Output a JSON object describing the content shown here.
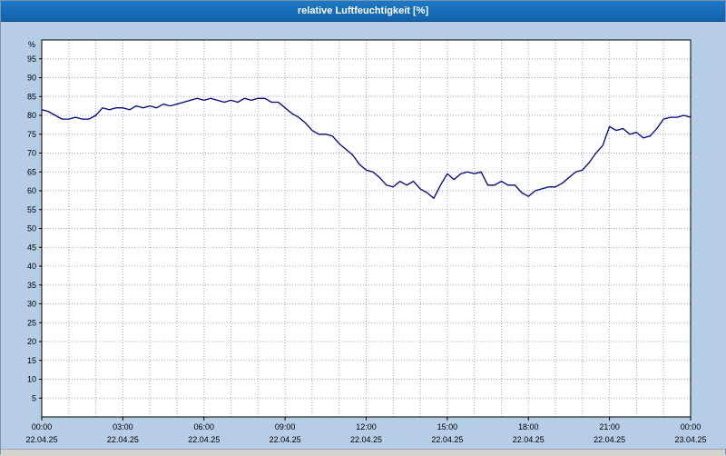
{
  "window": {
    "title": "relative Luftfeuchtigkeit [%]"
  },
  "colors": {
    "titlebar": "#1569b5",
    "panel_bg": "#b6cde6",
    "plot_bg": "#ffffff",
    "grid": "#8fa8c4",
    "axis": "#000000",
    "line": "#000080"
  },
  "chart_data": {
    "type": "line",
    "title": "relative Luftfeuchtigkeit [%]",
    "xlabel": "",
    "ylabel": "%",
    "ylim": [
      0,
      100
    ],
    "xlim": [
      0,
      24
    ],
    "grid": "dotted, horizontal every 5%, vertical every hour",
    "legend_position": "none",
    "yticks": [
      5,
      10,
      15,
      20,
      25,
      30,
      35,
      40,
      45,
      50,
      55,
      60,
      65,
      70,
      75,
      80,
      85,
      90,
      95
    ],
    "x_minor_step": 1,
    "x_ticks": [
      {
        "t": 0,
        "time": "00:00",
        "date": "22.04.25"
      },
      {
        "t": 3,
        "time": "03:00",
        "date": "22.04.25"
      },
      {
        "t": 6,
        "time": "06:00",
        "date": "22.04.25"
      },
      {
        "t": 9,
        "time": "09:00",
        "date": "22.04.25"
      },
      {
        "t": 12,
        "time": "12:00",
        "date": "22.04.25"
      },
      {
        "t": 15,
        "time": "15:00",
        "date": "22.04.25"
      },
      {
        "t": 18,
        "time": "18:00",
        "date": "22.04.25"
      },
      {
        "t": 21,
        "time": "21:00",
        "date": "22.04.25"
      },
      {
        "t": 24,
        "time": "00:00",
        "date": "23.04.25"
      }
    ],
    "series": [
      {
        "name": "relative Luftfeuchtigkeit",
        "color": "#000080",
        "points": [
          [
            0,
            81.5
          ],
          [
            0.25,
            81
          ],
          [
            0.5,
            80
          ],
          [
            0.75,
            79
          ],
          [
            1,
            79
          ],
          [
            1.25,
            79.5
          ],
          [
            1.5,
            79
          ],
          [
            1.75,
            79
          ],
          [
            2,
            80
          ],
          [
            2.25,
            82
          ],
          [
            2.5,
            81.5
          ],
          [
            2.75,
            82
          ],
          [
            3,
            82
          ],
          [
            3.25,
            81.5
          ],
          [
            3.5,
            82.5
          ],
          [
            3.75,
            82
          ],
          [
            4,
            82.5
          ],
          [
            4.25,
            82
          ],
          [
            4.5,
            83
          ],
          [
            4.75,
            82.5
          ],
          [
            5,
            83
          ],
          [
            5.25,
            83.5
          ],
          [
            5.5,
            84
          ],
          [
            5.75,
            84.5
          ],
          [
            6,
            84
          ],
          [
            6.25,
            84.5
          ],
          [
            6.5,
            84
          ],
          [
            6.75,
            83.5
          ],
          [
            7,
            84
          ],
          [
            7.25,
            83.5
          ],
          [
            7.5,
            84.5
          ],
          [
            7.75,
            84
          ],
          [
            8,
            84.5
          ],
          [
            8.25,
            84.5
          ],
          [
            8.5,
            83.5
          ],
          [
            8.75,
            83.5
          ],
          [
            9,
            82
          ],
          [
            9.25,
            80.5
          ],
          [
            9.5,
            79.5
          ],
          [
            9.75,
            78
          ],
          [
            10,
            76
          ],
          [
            10.25,
            75
          ],
          [
            10.5,
            75
          ],
          [
            10.75,
            74.5
          ],
          [
            11,
            72.5
          ],
          [
            11.25,
            71
          ],
          [
            11.5,
            69.5
          ],
          [
            11.75,
            67
          ],
          [
            12,
            65.5
          ],
          [
            12.25,
            65
          ],
          [
            12.5,
            63.5
          ],
          [
            12.75,
            61.5
          ],
          [
            13,
            61
          ],
          [
            13.25,
            62.5
          ],
          [
            13.5,
            61.5
          ],
          [
            13.75,
            62.5
          ],
          [
            14,
            60.5
          ],
          [
            14.25,
            59.5
          ],
          [
            14.5,
            58
          ],
          [
            14.75,
            61.5
          ],
          [
            15,
            64.5
          ],
          [
            15.25,
            63
          ],
          [
            15.5,
            64.5
          ],
          [
            15.75,
            65
          ],
          [
            16,
            64.5
          ],
          [
            16.25,
            65
          ],
          [
            16.5,
            61.5
          ],
          [
            16.75,
            61.5
          ],
          [
            17,
            62.5
          ],
          [
            17.25,
            61.5
          ],
          [
            17.5,
            61.5
          ],
          [
            17.75,
            59.5
          ],
          [
            18,
            58.5
          ],
          [
            18.25,
            60
          ],
          [
            18.5,
            60.5
          ],
          [
            18.75,
            61
          ],
          [
            19,
            61
          ],
          [
            19.25,
            62
          ],
          [
            19.5,
            63.5
          ],
          [
            19.75,
            65
          ],
          [
            20,
            65.5
          ],
          [
            20.25,
            67.5
          ],
          [
            20.5,
            70
          ],
          [
            20.75,
            72
          ],
          [
            21,
            77
          ],
          [
            21.25,
            76
          ],
          [
            21.5,
            76.5
          ],
          [
            21.75,
            75
          ],
          [
            22,
            75.5
          ],
          [
            22.25,
            74
          ],
          [
            22.5,
            74.5
          ],
          [
            22.75,
            76.5
          ],
          [
            23,
            79
          ],
          [
            23.25,
            79.5
          ],
          [
            23.5,
            79.5
          ],
          [
            23.75,
            80
          ],
          [
            24,
            79.5
          ]
        ]
      }
    ]
  }
}
